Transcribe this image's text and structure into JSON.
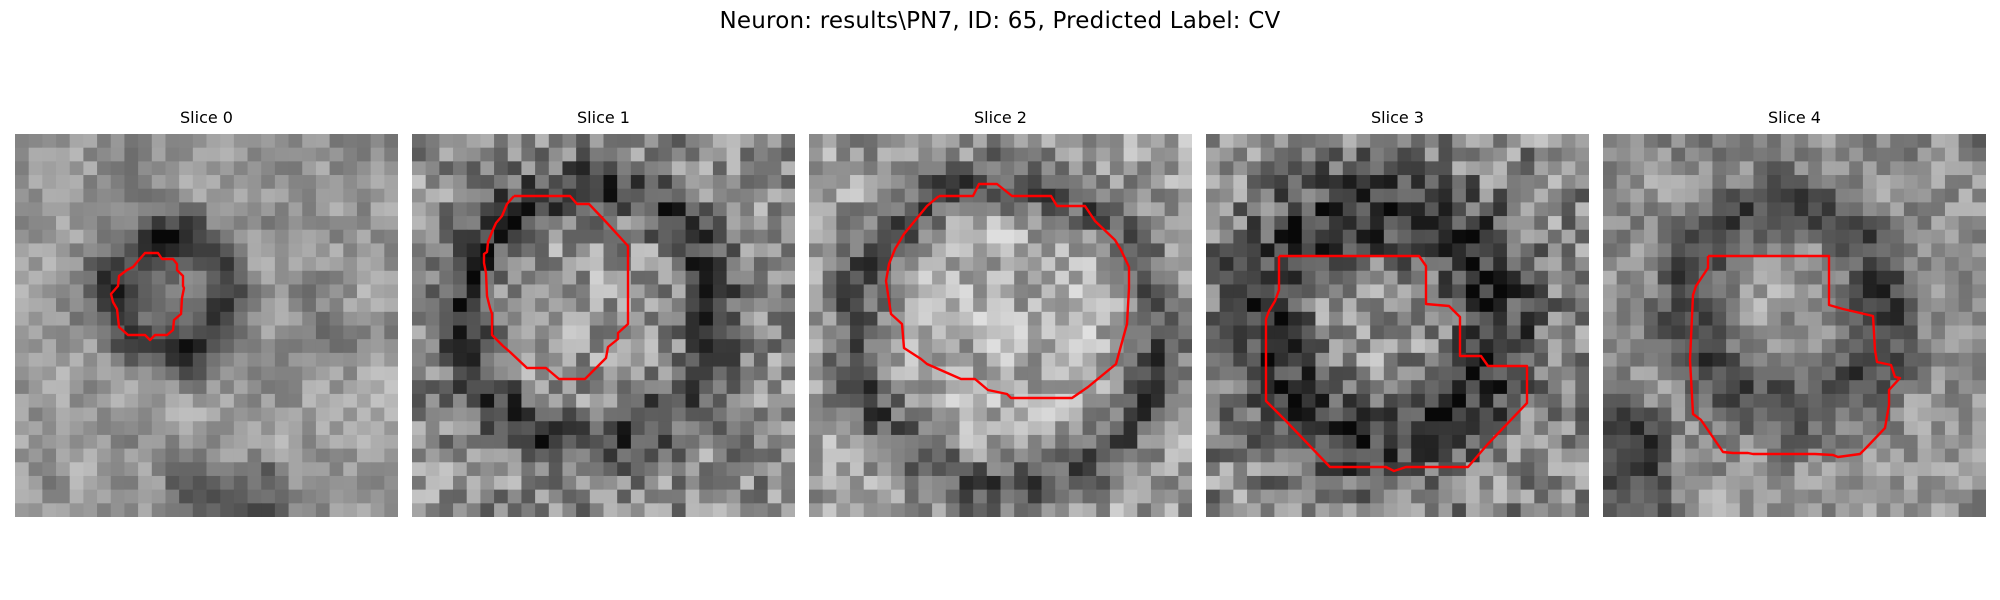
{
  "figure": {
    "title": "Neuron: results\\PN7, ID: 65, Predicted Label: CV"
  },
  "panels": [
    {
      "title": "Slice 0"
    },
    {
      "title": "Slice 1"
    },
    {
      "title": "Slice 2"
    },
    {
      "title": "Slice 3"
    },
    {
      "title": "Slice 4"
    }
  ],
  "colors": {
    "contour": "#ff0000",
    "colormap": "grayscale"
  }
}
